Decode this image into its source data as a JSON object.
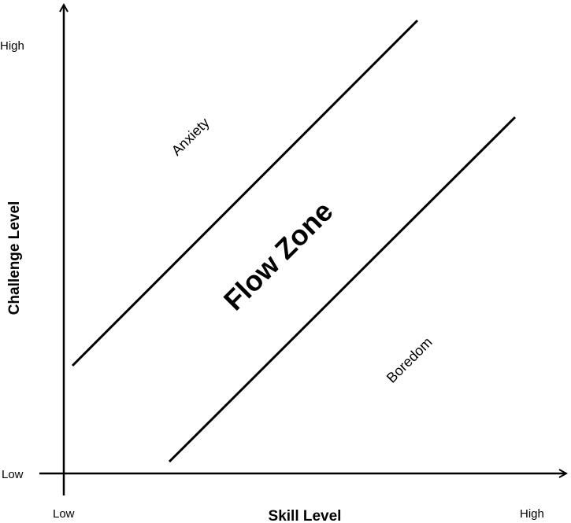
{
  "axes": {
    "x_label": "Skill Level",
    "y_label": "Challenge Level",
    "x_low": "Low",
    "x_high": "High",
    "y_low": "Low",
    "y_high": "High"
  },
  "regions": {
    "upper": "Anxiety",
    "center": "Flow Zone",
    "lower": "Boredom"
  },
  "colors": {
    "ink": "#000000",
    "background": "#ffffff"
  }
}
